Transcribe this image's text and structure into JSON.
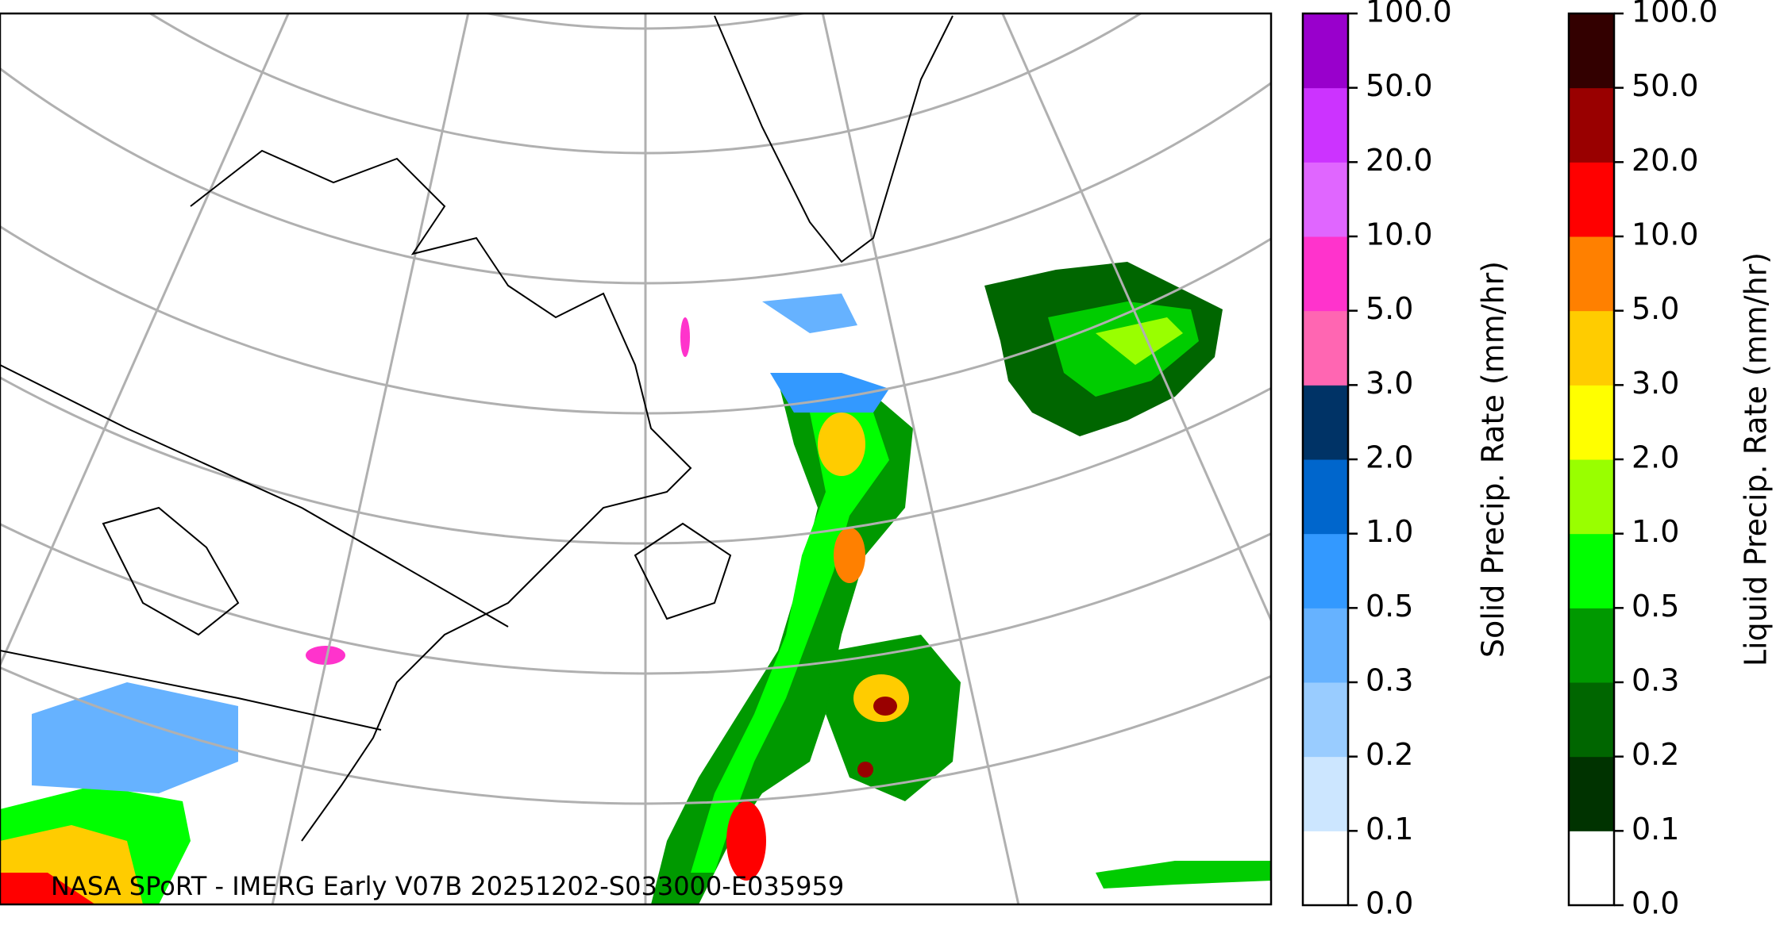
{
  "map": {
    "caption": "NASA SPoRT - IMERG Early V07B 20251202-S033000-E035959",
    "colorbars": [
      {
        "label": "Solid Precip. Rate (mm/hr)",
        "ticks": [
          "0.0",
          "0.1",
          "0.2",
          "0.3",
          "0.5",
          "1.0",
          "2.0",
          "3.0",
          "5.0",
          "10.0",
          "20.0",
          "50.0",
          "100.0"
        ],
        "colors": [
          "#ffffff",
          "#cce6ff",
          "#99ccff",
          "#66b2ff",
          "#3399ff",
          "#0066cc",
          "#003366",
          "#ff66b2",
          "#ff33cc",
          "#e066ff",
          "#cc33ff",
          "#9900cc"
        ]
      },
      {
        "label": "Liquid Precip. Rate (mm/hr)",
        "ticks": [
          "0.0",
          "0.1",
          "0.2",
          "0.3",
          "0.5",
          "1.0",
          "2.0",
          "3.0",
          "5.0",
          "10.0",
          "20.0",
          "50.0",
          "100.0"
        ],
        "colors": [
          "#ffffff",
          "#003300",
          "#006600",
          "#009900",
          "#00ff00",
          "#99ff00",
          "#ffff00",
          "#ffcc00",
          "#ff8000",
          "#ff0000",
          "#990000",
          "#330000"
        ]
      }
    ]
  }
}
